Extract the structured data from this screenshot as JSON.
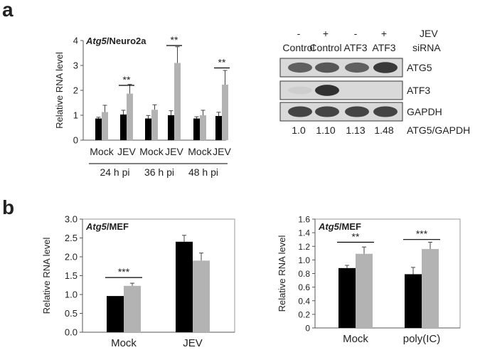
{
  "panels": {
    "a": "a",
    "b": "b"
  },
  "chart_data": [
    {
      "type": "bar",
      "panel": "a",
      "title_italic": "Atg5",
      "title_rest": "/Neuro2a",
      "ylabel": "Relative RNA level",
      "ylim": [
        0,
        4
      ],
      "yticks": [
        "0",
        "1",
        "2",
        "3",
        "4"
      ],
      "categories": [
        "Mock",
        "JEV",
        "Mock",
        "JEV",
        "Mock",
        "JEV"
      ],
      "groups": [
        "24 h pi",
        "36 h pi",
        "48 h pi"
      ],
      "series": [
        {
          "color": "#000000",
          "values": [
            0.87,
            1.03,
            0.87,
            1.0,
            0.87,
            0.97
          ],
          "errors": [
            0.05,
            0.17,
            0.12,
            0.18,
            0.07,
            0.15
          ]
        },
        {
          "color": "#b3b3b3",
          "values": [
            1.13,
            1.87,
            1.22,
            3.1,
            1.0,
            2.23
          ],
          "errors": [
            0.27,
            0.37,
            0.2,
            0.65,
            0.2,
            0.57
          ]
        }
      ],
      "significance": [
        {
          "category_index": 1,
          "label": "**",
          "y": 2.2
        },
        {
          "category_index": 3,
          "label": "**",
          "y": 3.8
        },
        {
          "category_index": 5,
          "label": "**",
          "y": 2.9
        }
      ]
    },
    {
      "type": "bar",
      "panel": "b-left",
      "title_italic": "Atg5",
      "title_rest": "/MEF",
      "ylabel": "Relative RNA level",
      "ylim": [
        0,
        3
      ],
      "yticks": [
        "0.0",
        "0.5",
        "1.0",
        "1.5",
        "2.0",
        "2.5",
        "3.0"
      ],
      "categories": [
        "Mock",
        "JEV"
      ],
      "series": [
        {
          "color": "#000000",
          "values": [
            0.96,
            2.4
          ],
          "errors": [
            0.0,
            0.17
          ]
        },
        {
          "color": "#b3b3b3",
          "values": [
            1.23,
            1.9
          ],
          "errors": [
            0.07,
            0.2
          ]
        }
      ],
      "significance": [
        {
          "category_index": 0,
          "label": "***",
          "y": 1.45
        }
      ]
    },
    {
      "type": "bar",
      "panel": "b-right",
      "title_italic": "Atg5",
      "title_rest": "/MEF",
      "ylabel": "Relative RNA level",
      "ylim": [
        0,
        1.6
      ],
      "yticks": [
        "0",
        "0.2",
        "0.4",
        "0.6",
        "0.8",
        "1.0",
        "1.2",
        "1.4",
        "1.6"
      ],
      "categories": [
        "Mock",
        "poly(IC)"
      ],
      "series": [
        {
          "color": "#000000",
          "values": [
            0.88,
            0.79
          ],
          "errors": [
            0.04,
            0.1
          ]
        },
        {
          "color": "#b3b3b3",
          "values": [
            1.09,
            1.16
          ],
          "errors": [
            0.1,
            0.1
          ]
        }
      ],
      "significance": [
        {
          "category_index": 0,
          "label": "**",
          "y": 1.26
        },
        {
          "category_index": 1,
          "label": "***",
          "y": 1.3
        }
      ]
    }
  ],
  "blot": {
    "lane_signs": [
      "-",
      "+",
      "-",
      "+"
    ],
    "lane_labels": [
      "Control",
      "Control",
      "ATF3",
      "ATF3"
    ],
    "header_right": [
      "JEV",
      "siRNA"
    ],
    "rows": [
      {
        "label": "ATG5",
        "intensities": [
          0.7,
          0.75,
          0.7,
          0.9
        ]
      },
      {
        "label": "ATF3",
        "intensities": [
          0.12,
          0.95,
          0.0,
          0.0
        ]
      },
      {
        "label": "GAPDH",
        "intensities": [
          0.85,
          0.85,
          0.85,
          0.85
        ]
      }
    ],
    "ratios": [
      "1.0",
      "1.10",
      "1.13",
      "1.48"
    ],
    "ratio_label": "ATG5/GAPDH"
  }
}
